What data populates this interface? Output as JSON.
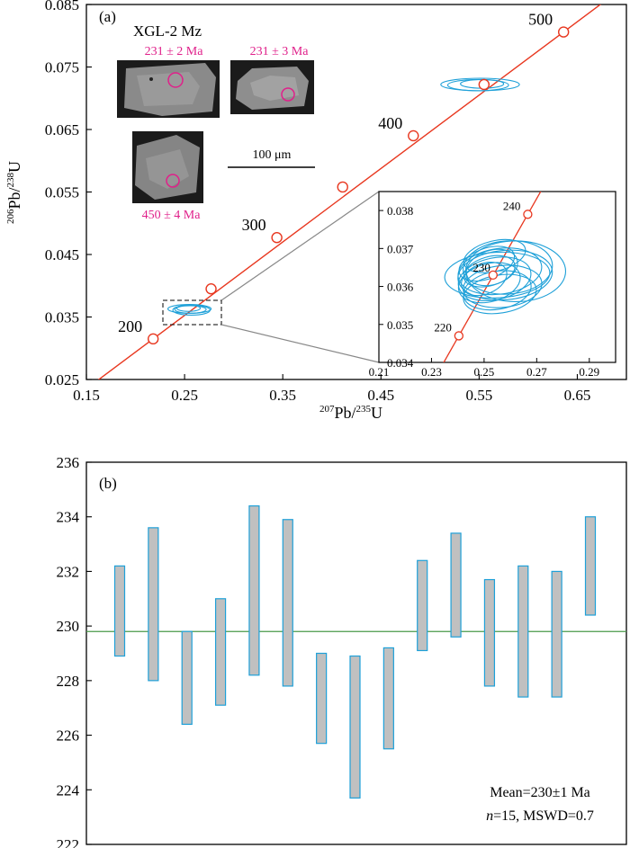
{
  "panel_a": {
    "label": "(a)",
    "sample": "XGL-2 Mz",
    "scale_bar": "100 μm",
    "grain_ages": [
      "231 ± 2 Ma",
      "231 ± 3 Ma",
      "450 ± 4 Ma"
    ],
    "xlabel_sup": "207",
    "xlabel_main": "Pb/",
    "xlabel_sup2": "235",
    "xlabel_end": "U",
    "ylabel_sup": "206",
    "ylabel_main": "Pb/",
    "ylabel_sup2": "238",
    "ylabel_end": "U",
    "colors": {
      "concordia": "#e8371f",
      "ellipse": "#1ea0d8",
      "marker": "#e8371f"
    }
  },
  "panel_b": {
    "label": "(b)",
    "stat1": "Mean=230±1 Ma",
    "stat2_n": "n",
    "stat2_rest": "=15, MSWD=0.7",
    "colors": {
      "bar_fill": "#c0c0c0",
      "bar_stroke": "#1ea0d8",
      "mean_line": "#4a9a4a"
    }
  },
  "chart_data": [
    {
      "type": "scatter",
      "title": "",
      "xlabel": "207Pb/235U",
      "ylabel": "206Pb/238U",
      "xlim": [
        0.15,
        0.7
      ],
      "ylim": [
        0.025,
        0.085
      ],
      "xticks": [
        "0.15",
        "0.25",
        "0.35",
        "0.45",
        "0.55",
        "0.65"
      ],
      "yticks": [
        "0.025",
        "0.035",
        "0.045",
        "0.055",
        "0.065",
        "0.075",
        "0.085"
      ],
      "concordia_ages": [
        {
          "age": "200",
          "x": 0.218,
          "y": 0.0315
        },
        {
          "age": "",
          "x": 0.277,
          "y": 0.0395
        },
        {
          "age": "300",
          "x": 0.344,
          "y": 0.0477
        },
        {
          "age": "",
          "x": 0.411,
          "y": 0.0558
        },
        {
          "age": "400",
          "x": 0.483,
          "y": 0.064
        },
        {
          "age": "",
          "x": 0.555,
          "y": 0.0722
        },
        {
          "age": "500",
          "x": 0.636,
          "y": 0.0806
        }
      ],
      "ellipses": [
        {
          "x": 0.255,
          "y": 0.0363,
          "rx": 0.022,
          "ry": 0.0007
        },
        {
          "x": 0.256,
          "y": 0.0362,
          "rx": 0.016,
          "ry": 0.0006
        },
        {
          "x": 0.254,
          "y": 0.0364,
          "rx": 0.012,
          "ry": 0.0005
        },
        {
          "x": 0.257,
          "y": 0.0361,
          "rx": 0.019,
          "ry": 0.0008
        },
        {
          "x": 0.551,
          "y": 0.0722,
          "rx": 0.04,
          "ry": 0.001
        },
        {
          "x": 0.549,
          "y": 0.0721,
          "rx": 0.031,
          "ry": 0.0009
        },
        {
          "x": 0.553,
          "y": 0.0723,
          "rx": 0.022,
          "ry": 0.0007
        }
      ]
    },
    {
      "type": "scatter",
      "title": "",
      "xlim": [
        0.21,
        0.3
      ],
      "ylim": [
        0.034,
        0.0385
      ],
      "xticks": [
        "0.21",
        "0.23",
        "0.25",
        "0.27",
        "0.29"
      ],
      "yticks": [
        "0.034",
        "0.035",
        "0.036",
        "0.037",
        "0.038"
      ],
      "concordia_ages": [
        {
          "age": "220",
          "x": 0.2404,
          "y": 0.0347
        },
        {
          "age": "230",
          "x": 0.2534,
          "y": 0.0363
        },
        {
          "age": "240",
          "x": 0.2666,
          "y": 0.0379
        }
      ],
      "ellipses": [
        {
          "x": 0.254,
          "y": 0.0362,
          "rx": 0.014,
          "ry": 0.00055,
          "rot": -12
        },
        {
          "x": 0.256,
          "y": 0.0364,
          "rx": 0.016,
          "ry": 0.0006,
          "rot": -8
        },
        {
          "x": 0.252,
          "y": 0.0361,
          "rx": 0.012,
          "ry": 0.0005,
          "rot": -15
        },
        {
          "x": 0.258,
          "y": 0.0363,
          "rx": 0.018,
          "ry": 0.00065,
          "rot": -5
        },
        {
          "x": 0.251,
          "y": 0.0366,
          "rx": 0.011,
          "ry": 0.0004,
          "rot": -20
        },
        {
          "x": 0.255,
          "y": 0.0359,
          "rx": 0.013,
          "ry": 0.0005,
          "rot": -10
        },
        {
          "x": 0.253,
          "y": 0.0365,
          "rx": 0.01,
          "ry": 0.00045,
          "rot": -18
        },
        {
          "x": 0.257,
          "y": 0.036,
          "rx": 0.015,
          "ry": 0.00055,
          "rot": -6
        },
        {
          "x": 0.25,
          "y": 0.0362,
          "rx": 0.009,
          "ry": 0.0004,
          "rot": -22
        },
        {
          "x": 0.259,
          "y": 0.0365,
          "rx": 0.017,
          "ry": 0.0007,
          "rot": -4
        },
        {
          "x": 0.254,
          "y": 0.0368,
          "rx": 0.012,
          "ry": 0.0004,
          "rot": -14
        },
        {
          "x": 0.256,
          "y": 0.0358,
          "rx": 0.014,
          "ry": 0.0005,
          "rot": -9
        },
        {
          "x": 0.252,
          "y": 0.0364,
          "rx": 0.01,
          "ry": 0.00038,
          "rot": -16
        },
        {
          "x": 0.255,
          "y": 0.0363,
          "rx": 0.02,
          "ry": 0.0006,
          "rot": -3
        },
        {
          "x": 0.262,
          "y": 0.0364,
          "rx": 0.019,
          "ry": 0.0008,
          "rot": 0
        }
      ]
    },
    {
      "type": "bar",
      "title": "",
      "xlabel": "",
      "ylabel": "",
      "ylim": [
        222,
        236
      ],
      "yticks": [
        "222",
        "224",
        "226",
        "228",
        "230",
        "232",
        "234",
        "236"
      ],
      "mean": 229.8,
      "series": [
        {
          "values": [
            {
              "low": 228.9,
              "high": 232.2
            },
            {
              "low": 228.0,
              "high": 233.6
            },
            {
              "low": 226.4,
              "high": 229.8
            },
            {
              "low": 227.1,
              "high": 231.0
            },
            {
              "low": 228.2,
              "high": 234.4
            },
            {
              "low": 227.8,
              "high": 233.9
            },
            {
              "low": 225.7,
              "high": 229.0
            },
            {
              "low": 223.7,
              "high": 228.9
            },
            {
              "low": 225.5,
              "high": 229.2
            },
            {
              "low": 229.1,
              "high": 232.4
            },
            {
              "low": 229.6,
              "high": 233.4
            },
            {
              "low": 227.8,
              "high": 231.7
            },
            {
              "low": 227.4,
              "high": 232.2
            },
            {
              "low": 227.4,
              "high": 232.0
            },
            {
              "low": 230.4,
              "high": 234.0
            }
          ]
        }
      ]
    }
  ]
}
